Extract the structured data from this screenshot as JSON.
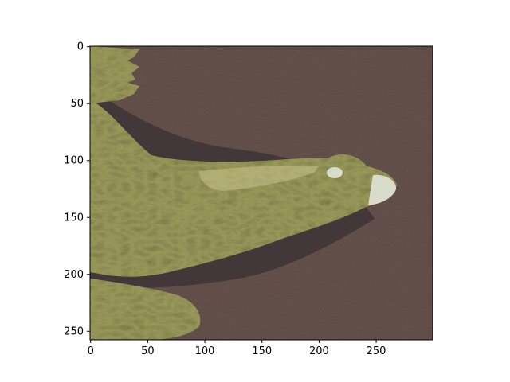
{
  "figure": {
    "kind": "matplotlib imshow",
    "subject": "crocodile-head"
  },
  "image_extent": {
    "width": 300,
    "height": 258
  },
  "axes": {
    "x_ticks": [
      0,
      50,
      100,
      150,
      200,
      250
    ],
    "y_ticks": [
      0,
      50,
      100,
      150,
      200,
      250
    ],
    "x_tick_labels": [
      "0",
      "50",
      "100",
      "150",
      "200",
      "250"
    ],
    "y_tick_labels": [
      "0",
      "50",
      "100",
      "150",
      "200",
      "250"
    ]
  },
  "colors": {
    "ground": "#6a5650",
    "ground_dark": "#4a3c3c",
    "skin_light": "#c7c48a",
    "skin_mid": "#9b9a5c",
    "skin_dark": "#5f6238",
    "shadow": "#2f2a2e",
    "eye": "#d9dccb"
  }
}
